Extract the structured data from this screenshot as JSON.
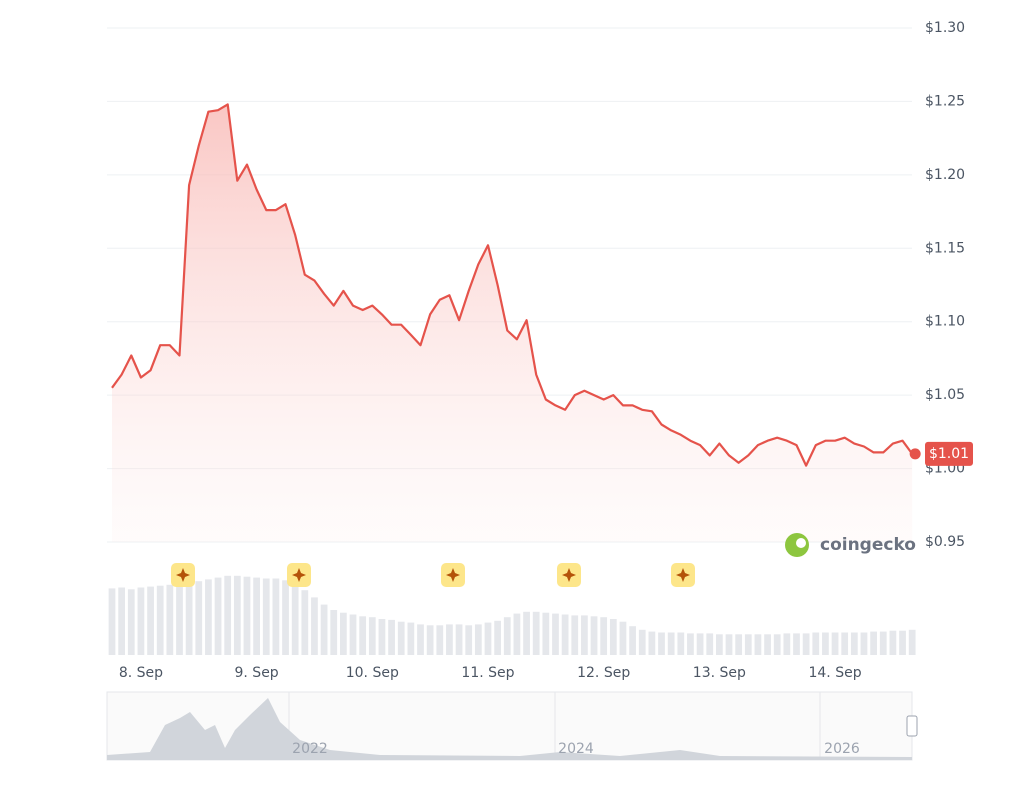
{
  "chart_data": {
    "type": "line",
    "categories": [
      null,
      null,
      null,
      "8. Sep",
      null,
      null,
      null,
      null,
      null,
      null,
      null,
      null,
      null,
      null,
      null,
      "9. Sep",
      null,
      null,
      null,
      null,
      null,
      null,
      null,
      null,
      null,
      null,
      null,
      "10. Sep",
      null,
      null,
      null,
      null,
      null,
      null,
      null,
      null,
      null,
      null,
      null,
      "11. Sep",
      null,
      null,
      null,
      null,
      null,
      null,
      null,
      null,
      null,
      null,
      null,
      "12. Sep",
      null,
      null,
      null,
      null,
      null,
      null,
      null,
      null,
      null,
      null,
      null,
      "13. Sep",
      null,
      null,
      null,
      null,
      null,
      null,
      null,
      null,
      null,
      null,
      null,
      "14. Sep",
      null,
      null,
      null,
      null,
      null,
      null,
      null,
      null
    ],
    "series": [
      {
        "color": "#e5534b",
        "values": [
          1.055,
          1.064,
          1.077,
          1.062,
          1.067,
          1.084,
          1.084,
          1.077,
          1.193,
          1.22,
          1.243,
          1.244,
          1.248,
          1.196,
          1.207,
          1.19,
          1.176,
          1.176,
          1.18,
          1.159,
          1.132,
          1.128,
          1.119,
          1.111,
          1.121,
          1.111,
          1.108,
          1.111,
          1.105,
          1.098,
          1.098,
          1.091,
          1.084,
          1.105,
          1.115,
          1.118,
          1.101,
          1.121,
          1.139,
          1.152,
          1.125,
          1.094,
          1.088,
          1.101,
          1.064,
          1.047,
          1.043,
          1.04,
          1.05,
          1.053,
          1.05,
          1.047,
          1.05,
          1.043,
          1.043,
          1.04,
          1.039,
          1.03,
          1.026,
          1.023,
          1.019,
          1.016,
          1.009,
          1.017,
          1.009,
          1.004,
          1.009,
          1.016,
          1.019,
          1.021,
          1.019,
          1.016,
          1.002,
          1.016,
          1.019,
          1.019,
          1.021,
          1.017,
          1.015,
          1.011,
          1.011,
          1.017,
          1.019,
          1.01
        ],
        "value_labels": [
          null,
          null,
          null,
          null,
          null,
          null,
          null,
          null,
          null,
          null,
          null,
          null,
          null,
          null,
          null,
          null,
          null,
          null,
          null,
          null,
          null,
          null,
          null,
          null,
          null,
          null,
          null,
          null,
          null,
          null,
          null,
          null,
          null,
          null,
          null,
          null,
          null,
          null,
          null,
          null,
          null,
          null,
          null,
          null,
          null,
          null,
          null,
          null,
          null,
          null,
          null,
          null,
          null,
          null,
          null,
          null,
          null,
          null,
          null,
          null,
          null,
          null,
          null,
          null,
          null,
          null,
          null,
          null,
          null,
          null,
          null,
          null,
          null,
          null,
          null,
          null,
          null,
          null,
          null,
          null,
          null,
          null,
          null,
          "$1.01"
        ]
      }
    ],
    "ylim": [
      0.95,
      1.3
    ],
    "yticks": [
      {
        "value": 0.95,
        "label": "$0.95"
      },
      {
        "value": 1.0,
        "label": "$1.00"
      },
      {
        "value": 1.05,
        "label": "$1.05"
      },
      {
        "value": 1.1,
        "label": "$1.10"
      },
      {
        "value": 1.15,
        "label": "$1.15"
      },
      {
        "value": 1.2,
        "label": "$1.20"
      },
      {
        "value": 1.25,
        "label": "$1.25"
      },
      {
        "value": 1.3,
        "label": "$1.30"
      }
    ],
    "grid": true,
    "volume": {
      "color": "#e5e7eb",
      "ylim": [
        0,
        100
      ],
      "values": [
        74,
        75,
        73,
        75,
        76,
        77,
        78,
        78,
        80,
        82,
        84,
        86,
        88,
        88,
        87,
        86,
        85,
        85,
        83,
        78,
        72,
        64,
        56,
        50,
        47,
        45,
        43,
        42,
        40,
        39,
        37,
        36,
        34,
        33,
        33,
        34,
        34,
        33,
        34,
        36,
        38,
        42,
        46,
        48,
        48,
        47,
        46,
        45,
        44,
        44,
        43,
        42,
        40,
        37,
        32,
        28,
        26,
        25,
        25,
        25,
        24,
        24,
        24,
        23,
        23,
        23,
        23,
        23,
        23,
        23,
        24,
        24,
        24,
        25,
        25,
        25,
        25,
        25,
        25,
        26,
        26,
        27,
        27,
        28
      ]
    },
    "watermark": "coingecko",
    "navigator_labels": [
      "2022",
      "2024",
      "2026"
    ]
  }
}
